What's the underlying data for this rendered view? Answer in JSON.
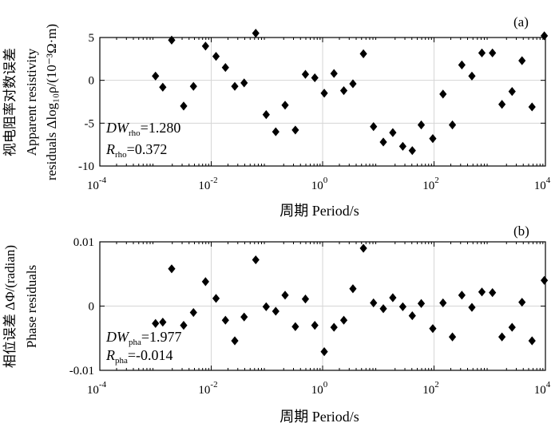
{
  "chart_data": [
    {
      "type": "scatter",
      "panel_label": "(a)",
      "xscale": "log",
      "xlim": [
        0.0001,
        10000
      ],
      "ylim": [
        -10,
        5
      ],
      "xticks": [
        0.0001,
        0.01,
        1,
        100,
        10000
      ],
      "xtick_labels": [
        [
          "10",
          "-4"
        ],
        [
          "10",
          "-2"
        ],
        [
          "10",
          "0"
        ],
        [
          "10",
          "2"
        ],
        [
          "10",
          "4"
        ]
      ],
      "yticks": [
        -10,
        -5,
        0,
        5
      ],
      "ytick_labels": [
        "-10",
        "-5",
        "0",
        "5"
      ],
      "grid": true,
      "xlabel": "周期 Period/s",
      "ylabel_lines": [
        "视电阻率对数误差",
        "Apparent resistivity",
        "residuals Δlog₁₀ρ/(10⁻³Ω·m)"
      ],
      "stats": [
        {
          "symbol": "DW",
          "sub": "rho",
          "value": "=1.280"
        },
        {
          "symbol": "R",
          "sub": "rho",
          "value": "=0.372"
        }
      ],
      "marker": "diamond",
      "color": "#000000",
      "x": [
        0.001,
        0.00135,
        0.00195,
        0.0032,
        0.0048,
        0.0079,
        0.0122,
        0.018,
        0.0265,
        0.039,
        0.063,
        0.097,
        0.144,
        0.212,
        0.324,
        0.491,
        0.724,
        1.07,
        1.6,
        2.4,
        3.5,
        5.4,
        8.2,
        12.3,
        18.2,
        27.5,
        40.7,
        59,
        95,
        145,
        214,
        316,
        479,
        724,
        1120,
        1660,
        2520,
        3800,
        5750,
        9550
      ],
      "y": [
        0.5,
        -0.8,
        4.7,
        -3.0,
        -0.7,
        4.0,
        2.8,
        1.5,
        -0.7,
        -0.3,
        5.5,
        -4.0,
        -6.0,
        -2.9,
        -5.8,
        0.7,
        0.3,
        -1.5,
        0.8,
        -1.2,
        -0.4,
        3.1,
        -5.4,
        -7.2,
        -6.1,
        -7.7,
        -8.2,
        -5.2,
        -6.8,
        -1.6,
        -5.2,
        1.8,
        0.5,
        3.2,
        3.2,
        -2.8,
        -1.3,
        2.3,
        -3.1,
        5.2
      ]
    },
    {
      "type": "scatter",
      "panel_label": "(b)",
      "xscale": "log",
      "xlim": [
        0.0001,
        10000
      ],
      "ylim": [
        -0.01,
        0.01
      ],
      "xticks": [
        0.0001,
        0.01,
        1,
        100,
        10000
      ],
      "xtick_labels": [
        [
          "10",
          "-4"
        ],
        [
          "10",
          "-2"
        ],
        [
          "10",
          "0"
        ],
        [
          "10",
          "2"
        ],
        [
          "10",
          "4"
        ]
      ],
      "yticks": [
        -0.01,
        0,
        0.01
      ],
      "ytick_labels": [
        "-0.01",
        "0",
        "0.01"
      ],
      "grid": true,
      "xlabel": "周期 Period/s",
      "ylabel_lines": [
        "相位误差 ΔΦ/(radian)",
        "Phase residuals"
      ],
      "stats": [
        {
          "symbol": "DW",
          "sub": "pha",
          "value": "=1.977"
        },
        {
          "symbol": "R",
          "sub": "pha",
          "value": "=-0.014"
        }
      ],
      "marker": "diamond",
      "color": "#000000",
      "x": [
        0.001,
        0.00135,
        0.00195,
        0.0032,
        0.0048,
        0.0079,
        0.0122,
        0.018,
        0.0265,
        0.039,
        0.063,
        0.097,
        0.144,
        0.212,
        0.324,
        0.491,
        0.724,
        1.07,
        1.6,
        2.4,
        3.5,
        5.4,
        8.2,
        12.3,
        18.2,
        27.5,
        40.7,
        59,
        95,
        145,
        214,
        316,
        479,
        724,
        1120,
        1660,
        2520,
        3800,
        5750,
        9550
      ],
      "y": [
        -0.0027,
        -0.0025,
        0.0058,
        -0.003,
        -0.001,
        0.0038,
        0.0012,
        -0.0022,
        -0.0054,
        -0.0017,
        0.0072,
        -0.0001,
        -0.0008,
        0.0017,
        -0.0032,
        0.0011,
        -0.003,
        -0.0071,
        -0.0033,
        -0.0022,
        0.0027,
        0.009,
        0.0005,
        -0.0004,
        0.0013,
        -0.0001,
        -0.0015,
        0.0004,
        -0.0035,
        0.0005,
        -0.0048,
        0.0017,
        -0.0002,
        0.0022,
        0.0021,
        -0.0048,
        -0.0033,
        0.0006,
        -0.0054,
        0.004
      ]
    }
  ]
}
